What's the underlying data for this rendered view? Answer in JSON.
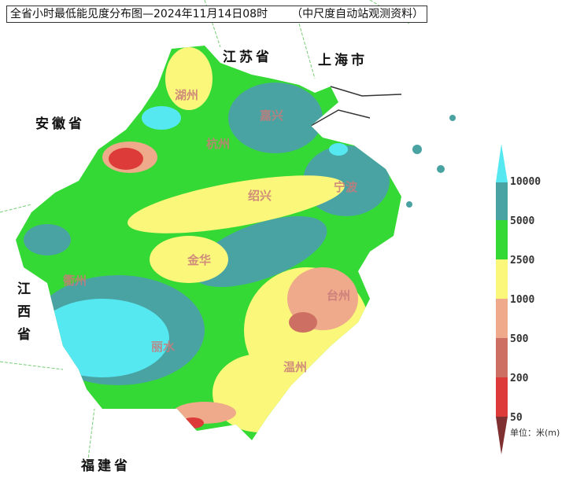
{
  "title": {
    "main": "全省小时最低能见度分布图—2024年11月14日08时",
    "source": "（中尺度自动站观测资料）"
  },
  "neighbors": {
    "jiangsu": "江苏省",
    "shanghai": "上海市",
    "anhui": "安徽省",
    "jiangxi": "江西省",
    "fujian": "福建省"
  },
  "cities": {
    "huzhou": "湖州",
    "jiaxing": "嘉兴",
    "hangzhou": "杭州",
    "shaoxing": "绍兴",
    "ningbo": "宁波",
    "quzhou": "衢州",
    "jinhua": "金华",
    "taizhou": "台州",
    "lishui": "丽水",
    "wenzhou": "温州"
  },
  "legend": {
    "labels": [
      "10000",
      "5000",
      "2500",
      "1000",
      "500",
      "200",
      "50"
    ],
    "unit": "单位：米(m)",
    "colors": {
      "above_10000": "#55e8f0",
      "5000_10000": "#4aa3a3",
      "2500_5000": "#35d935",
      "1000_2500": "#fbf77a",
      "500_1000": "#eeaa8a",
      "200_500": "#cd6f62",
      "50_200": "#dd3a3a",
      "below_50": "#7f3030"
    }
  }
}
